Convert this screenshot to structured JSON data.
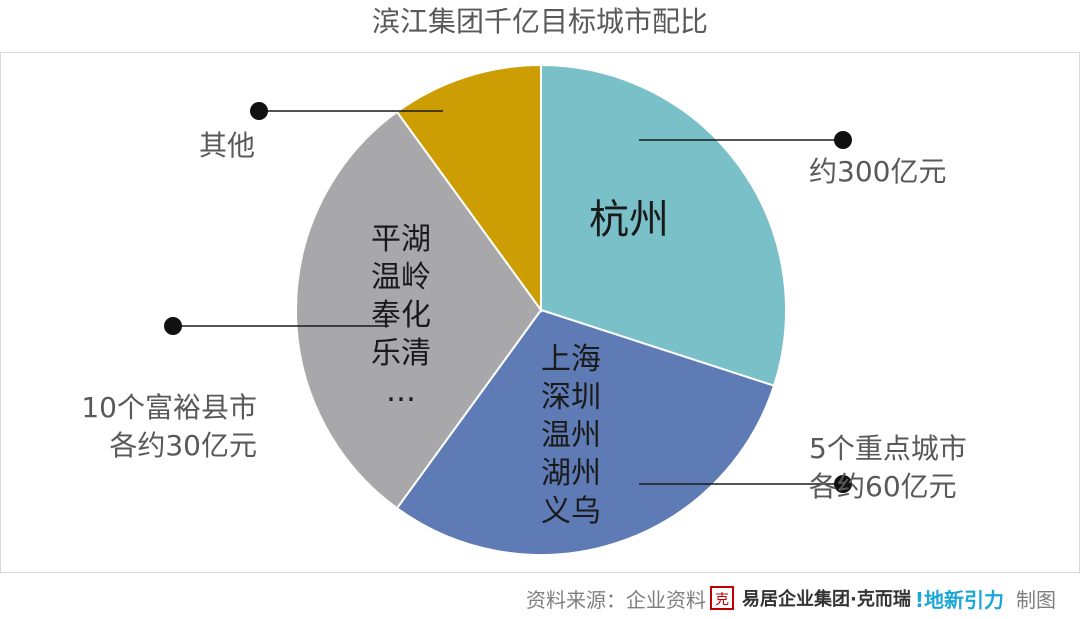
{
  "chart_data": {
    "type": "pie",
    "title": "滨江集团千亿目标城市配比",
    "slices": [
      {
        "label": "杭州",
        "value": 300,
        "color": "#7ac0c8"
      },
      {
        "label": "上海\n深圳\n温州\n湖州\n义乌",
        "value": 300,
        "color": "#5f7bb5"
      },
      {
        "label": "平湖\n温岭\n奉化\n乐清\n…",
        "value": 300,
        "color": "#a8a7aa"
      },
      {
        "label": "",
        "value": 100,
        "color": "#cc9e04"
      }
    ],
    "annotations": [
      {
        "text": "约300亿元",
        "slice": "杭州"
      },
      {
        "text": "5个重点城市\n各约60亿元",
        "slice": "上海 深圳 温州 湖州 义乌"
      },
      {
        "text": "10个富裕县市\n各约30亿元",
        "slice": "平湖 温岭 奉化 乐清"
      },
      {
        "text": "其他",
        "slice": "其他"
      }
    ]
  },
  "footer": {
    "source_label": "资料来源：企业资料",
    "logo_seal": "克",
    "logo_text": "易居企业集团·克而瑞",
    "logo2_text": "!地新引力",
    "suffix": "制图"
  }
}
